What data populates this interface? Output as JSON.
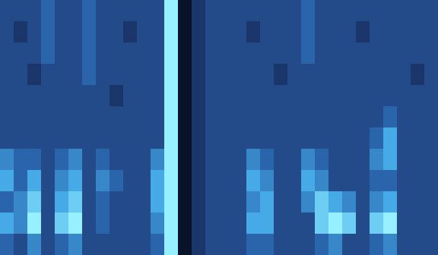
{
  "chart_data": {
    "type": "heatmap",
    "tick_labels": false,
    "cells": [
      [
        3,
        3,
        3,
        4,
        3,
        3,
        4,
        3,
        3,
        3,
        3,
        3,
        8,
        0,
        2,
        3,
        3,
        3,
        3,
        3,
        3,
        3,
        4,
        3,
        3,
        3,
        3,
        3,
        3,
        3,
        3,
        3
      ],
      [
        3,
        2,
        3,
        4,
        3,
        3,
        4,
        3,
        3,
        2,
        3,
        3,
        8,
        0,
        2,
        3,
        3,
        3,
        2,
        3,
        3,
        3,
        4,
        3,
        3,
        3,
        2,
        3,
        3,
        3,
        3,
        3
      ],
      [
        3,
        3,
        3,
        4,
        3,
        3,
        4,
        3,
        3,
        3,
        3,
        3,
        8,
        0,
        2,
        3,
        3,
        3,
        3,
        3,
        3,
        3,
        4,
        3,
        3,
        3,
        3,
        3,
        3,
        3,
        3,
        3
      ],
      [
        3,
        3,
        2,
        3,
        3,
        3,
        4,
        3,
        3,
        3,
        3,
        3,
        8,
        0,
        2,
        3,
        3,
        3,
        3,
        3,
        2,
        3,
        3,
        3,
        3,
        3,
        3,
        3,
        3,
        3,
        2,
        3
      ],
      [
        3,
        3,
        3,
        3,
        3,
        3,
        3,
        3,
        2,
        3,
        3,
        3,
        8,
        0,
        2,
        3,
        3,
        3,
        3,
        3,
        3,
        3,
        3,
        3,
        3,
        3,
        3,
        3,
        3,
        3,
        3,
        3
      ],
      [
        3,
        3,
        3,
        3,
        3,
        3,
        3,
        3,
        3,
        3,
        3,
        3,
        8,
        0,
        2,
        3,
        3,
        3,
        3,
        3,
        3,
        3,
        3,
        3,
        3,
        3,
        3,
        3,
        4,
        3,
        3,
        3
      ],
      [
        3,
        3,
        3,
        3,
        3,
        3,
        3,
        3,
        3,
        3,
        3,
        3,
        8,
        0,
        2,
        3,
        3,
        3,
        3,
        3,
        3,
        3,
        3,
        3,
        3,
        3,
        3,
        4,
        6,
        3,
        3,
        3
      ],
      [
        5,
        4,
        4,
        3,
        4,
        5,
        3,
        4,
        3,
        3,
        3,
        5,
        8,
        0,
        2,
        3,
        3,
        3,
        5,
        4,
        3,
        3,
        5,
        4,
        3,
        3,
        3,
        5,
        6,
        3,
        3,
        3
      ],
      [
        6,
        4,
        6,
        3,
        5,
        6,
        3,
        5,
        4,
        3,
        3,
        6,
        8,
        0,
        2,
        3,
        3,
        3,
        6,
        5,
        3,
        3,
        6,
        5,
        3,
        3,
        3,
        4,
        4,
        3,
        3,
        3
      ],
      [
        4,
        5,
        7,
        3,
        6,
        7,
        3,
        4,
        3,
        3,
        3,
        6,
        8,
        0,
        2,
        3,
        3,
        3,
        5,
        6,
        3,
        3,
        5,
        7,
        6,
        5,
        3,
        5,
        6,
        3,
        3,
        3
      ],
      [
        6,
        5,
        8,
        3,
        7,
        8,
        3,
        4,
        3,
        3,
        3,
        5,
        8,
        0,
        2,
        3,
        3,
        3,
        6,
        6,
        3,
        3,
        3,
        7,
        8,
        7,
        3,
        7,
        8,
        3,
        3,
        3
      ],
      [
        4,
        3,
        5,
        3,
        4,
        5,
        3,
        3,
        3,
        3,
        3,
        4,
        8,
        0,
        2,
        3,
        3,
        3,
        4,
        4,
        3,
        3,
        3,
        4,
        5,
        3,
        3,
        4,
        5,
        3,
        3,
        3
      ]
    ]
  }
}
